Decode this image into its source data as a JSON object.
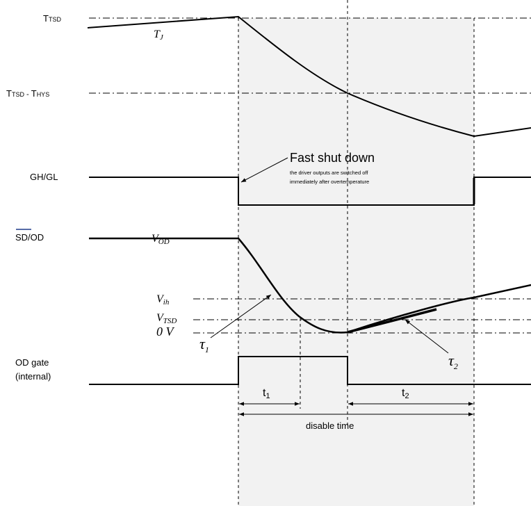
{
  "signals": {
    "t_tsd": {
      "main": "T",
      "sub": "TSD"
    },
    "t_tsd_thys": {
      "main1": "T",
      "sub1": "TSD",
      "sep": " - ",
      "main2": "T",
      "sub2": "HYS"
    },
    "gh_gl": "GH/GL",
    "sd_od": "SD/OD",
    "od_gate_line1": "OD gate",
    "od_gate_line2": "(internal)"
  },
  "curve_labels": {
    "tj_main": "T",
    "tj_sub": "J",
    "v_od_main": "V",
    "v_od_sub": "OD",
    "v_ih_main": "V",
    "v_ih_sub": "ih",
    "v_tsd_main": "V",
    "v_tsd_sub": "TSD",
    "zero_v": "0 V",
    "tau1_main": "τ",
    "tau1_sub": "1",
    "tau2_main": "τ",
    "tau2_sub": "2"
  },
  "annotation": {
    "title": "Fast shut down",
    "line1": "the driver outputs are switched off",
    "line2": "immediately after overtemperature"
  },
  "timing": {
    "t1_main": "t",
    "t1_sub": "1",
    "t2_main": "t",
    "t2_sub": "2",
    "disable_time": "disable time"
  },
  "colors": {
    "shade": "#f2f2f2",
    "line": "#000000",
    "overbar": "#1f3b8a"
  }
}
